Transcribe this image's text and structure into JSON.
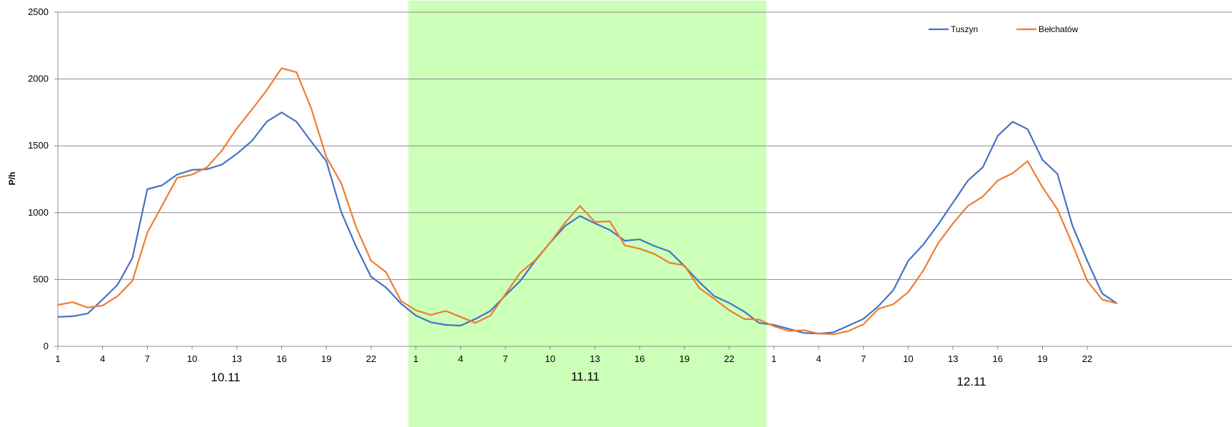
{
  "chart_data": {
    "type": "line",
    "ylabel": "P/h",
    "xlabel": "",
    "ylim": [
      0,
      2500
    ],
    "yticks": [
      0,
      500,
      1000,
      1500,
      2000,
      2500
    ],
    "grid": true,
    "legend_position": "top-right",
    "highlight": {
      "day": "11.11",
      "color": "#ccffb8",
      "label_color": "#ff0000"
    },
    "days": [
      {
        "label": "10.11",
        "color": "#000000"
      },
      {
        "label": "11.11",
        "color": "#ff0000"
      },
      {
        "label": "12.11",
        "color": "#000000"
      }
    ],
    "hours_per_day": 24,
    "x_tick_hours": [
      "1",
      "4",
      "7",
      "10",
      "13",
      "16",
      "19",
      "22"
    ],
    "series": [
      {
        "name": "Tuszyn",
        "color": "#4472c4",
        "values": [
          220,
          225,
          245,
          350,
          460,
          660,
          1175,
          1205,
          1285,
          1320,
          1325,
          1360,
          1440,
          1535,
          1680,
          1750,
          1680,
          1530,
          1385,
          1005,
          745,
          520,
          440,
          320,
          230,
          180,
          160,
          155,
          205,
          265,
          380,
          490,
          640,
          775,
          900,
          975,
          920,
          870,
          790,
          800,
          750,
          710,
          600,
          480,
          375,
          325,
          260,
          175,
          160,
          130,
          100,
          95,
          105,
          155,
          205,
          300,
          420,
          640,
          760,
          910,
          1075,
          1240,
          1340,
          1575,
          1680,
          1625,
          1395,
          1290,
          905,
          640,
          395,
          320
        ]
      },
      {
        "name": "Bełchatów",
        "color": "#ed7d31",
        "values": [
          310,
          330,
          290,
          305,
          375,
          490,
          850,
          1055,
          1260,
          1285,
          1340,
          1465,
          1630,
          1770,
          1915,
          2080,
          2050,
          1775,
          1415,
          1220,
          890,
          640,
          555,
          340,
          270,
          235,
          265,
          220,
          175,
          230,
          390,
          550,
          645,
          775,
          925,
          1050,
          930,
          935,
          755,
          730,
          690,
          625,
          605,
          435,
          355,
          270,
          205,
          200,
          150,
          115,
          120,
          95,
          90,
          115,
          165,
          280,
          315,
          405,
          565,
          770,
          920,
          1050,
          1120,
          1240,
          1295,
          1385,
          1190,
          1025,
          765,
          490,
          350,
          320
        ]
      }
    ]
  }
}
